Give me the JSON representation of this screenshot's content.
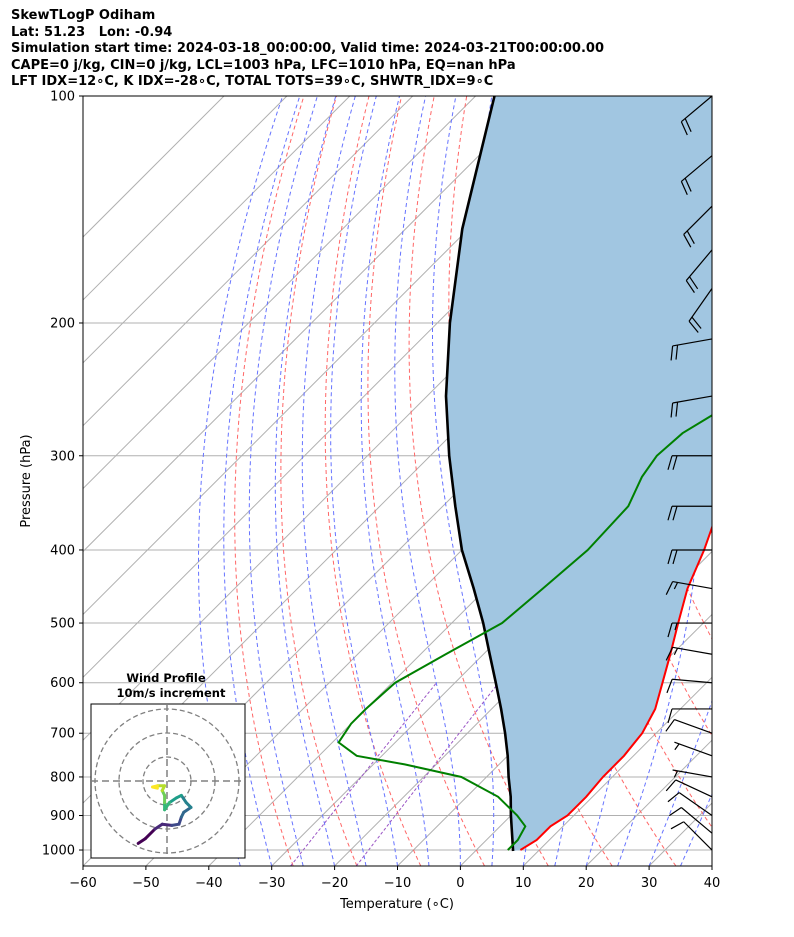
{
  "header": {
    "line1": "SkewTLogP Odiham",
    "line2": "Lat: 51.23   Lon: -0.94",
    "line3": "Simulation start time: 2024-03-18_00:00:00, Valid time: 2024-03-21T00:00:00.00",
    "line4": "CAPE=0 j/kg, CIN=0 j/kg, LCL=1003 hPa, LFC=1010 hPa, EQ=nan hPa",
    "line5": "LFT IDX=12∘C, K IDX=-28∘C, TOTAL TOTS=39∘C, SHWTR_IDX=9∘C"
  },
  "chart_data": {
    "type": "line",
    "subtype": "skew-t log-p",
    "xlabel": "Temperature (∘C)",
    "ylabel": "Pressure (hPa)",
    "xlim": [
      -60,
      40
    ],
    "ylim": [
      1050,
      100
    ],
    "y_scale": "log",
    "x_ticks": [
      "−60",
      "−50",
      "−40",
      "−30",
      "−20",
      "−10",
      "0",
      "10",
      "20",
      "30",
      "40"
    ],
    "y_ticks": [
      "100",
      "200",
      "300",
      "400",
      "500",
      "600",
      "700",
      "800",
      "900",
      "1000"
    ],
    "grid": true,
    "colors": {
      "temperature": "#ff0000",
      "dewpoint": "#008000",
      "parcel": "#000000",
      "shade": "#a1c6e1",
      "dry_adiabats": "#ff6666",
      "moist_adiabats": "#6673ff",
      "mixing_ratio": "#9a55c5"
    },
    "series": [
      {
        "role": "temperature",
        "points": [
          {
            "p": 1000,
            "t": 7
          },
          {
            "p": 970,
            "t": 8
          },
          {
            "p": 930,
            "t": 8
          },
          {
            "p": 900,
            "t": 9
          },
          {
            "p": 850,
            "t": 9
          },
          {
            "p": 800,
            "t": 8.5
          },
          {
            "p": 750,
            "t": 8.5
          },
          {
            "p": 700,
            "t": 7.8
          },
          {
            "p": 650,
            "t": 6
          },
          {
            "p": 600,
            "t": 3
          },
          {
            "p": 550,
            "t": -0.3
          },
          {
            "p": 500,
            "t": -4
          },
          {
            "p": 450,
            "t": -8
          },
          {
            "p": 400,
            "t": -11.5
          },
          {
            "p": 350,
            "t": -16
          },
          {
            "p": 320,
            "t": -19
          },
          {
            "p": 300,
            "t": -21.5
          },
          {
            "p": 280,
            "t": -25
          },
          {
            "p": 250,
            "t": -29
          },
          {
            "p": 230,
            "t": -32
          },
          {
            "p": 210,
            "t": -37
          },
          {
            "p": 200,
            "t": -39
          },
          {
            "p": 180,
            "t": -43.5
          },
          {
            "p": 170,
            "t": -45
          },
          {
            "p": 160,
            "t": -45.5
          },
          {
            "p": 150,
            "t": -47
          },
          {
            "p": 140,
            "t": -49
          },
          {
            "p": 130,
            "t": -51
          },
          {
            "p": 120,
            "t": -53
          },
          {
            "p": 110,
            "t": -54.5
          },
          {
            "p": 100,
            "t": -56
          }
        ]
      },
      {
        "role": "dewpoint",
        "points": [
          {
            "p": 1000,
            "t": 5
          },
          {
            "p": 970,
            "t": 5
          },
          {
            "p": 930,
            "t": 4
          },
          {
            "p": 900,
            "t": 1
          },
          {
            "p": 850,
            "t": -5
          },
          {
            "p": 800,
            "t": -14
          },
          {
            "p": 770,
            "t": -25
          },
          {
            "p": 750,
            "t": -34
          },
          {
            "p": 720,
            "t": -39
          },
          {
            "p": 680,
            "t": -40
          },
          {
            "p": 650,
            "t": -40
          },
          {
            "p": 600,
            "t": -39.5
          },
          {
            "p": 550,
            "t": -36
          },
          {
            "p": 500,
            "t": -32
          },
          {
            "p": 450,
            "t": -31
          },
          {
            "p": 400,
            "t": -30
          },
          {
            "p": 350,
            "t": -30.5
          },
          {
            "p": 320,
            "t": -33
          },
          {
            "p": 300,
            "t": -34
          },
          {
            "p": 280,
            "t": -33.5
          },
          {
            "p": 260,
            "t": -31
          },
          {
            "p": 250,
            "t": -29.5
          },
          {
            "p": 230,
            "t": -33
          },
          {
            "p": 215,
            "t": -39
          },
          {
            "p": 200,
            "t": -42
          },
          {
            "p": 180,
            "t": -42
          },
          {
            "p": 160,
            "t": -41.5
          },
          {
            "p": 140,
            "t": -40.5
          },
          {
            "p": 120,
            "t": -40
          },
          {
            "p": 110,
            "t": -38.5
          },
          {
            "p": 100,
            "t": -38
          }
        ]
      },
      {
        "role": "parcel",
        "points": [
          {
            "p": 1003,
            "t": 6
          },
          {
            "p": 950,
            "t": 3
          },
          {
            "p": 900,
            "t": 0
          },
          {
            "p": 850,
            "t": -3
          },
          {
            "p": 800,
            "t": -6.5
          },
          {
            "p": 750,
            "t": -10
          },
          {
            "p": 700,
            "t": -14
          },
          {
            "p": 650,
            "t": -18.5
          },
          {
            "p": 600,
            "t": -23.5
          },
          {
            "p": 550,
            "t": -29
          },
          {
            "p": 500,
            "t": -35
          },
          {
            "p": 450,
            "t": -42
          },
          {
            "p": 400,
            "t": -50
          },
          {
            "p": 350,
            "t": -58
          },
          {
            "p": 300,
            "t": -67
          },
          {
            "p": 250,
            "t": -77
          },
          {
            "p": 200,
            "t": -88
          },
          {
            "p": 150,
            "t": -101
          },
          {
            "p": 100,
            "t": -117
          }
        ]
      }
    ],
    "wind_barbs": [
      {
        "p": 100,
        "speed_kt": 20,
        "dir_deg": 230
      },
      {
        "p": 120,
        "speed_kt": 20,
        "dir_deg": 230
      },
      {
        "p": 140,
        "speed_kt": 20,
        "dir_deg": 225
      },
      {
        "p": 160,
        "speed_kt": 20,
        "dir_deg": 220
      },
      {
        "p": 180,
        "speed_kt": 20,
        "dir_deg": 215
      },
      {
        "p": 210,
        "speed_kt": 20,
        "dir_deg": 260
      },
      {
        "p": 250,
        "speed_kt": 20,
        "dir_deg": 260
      },
      {
        "p": 300,
        "speed_kt": 20,
        "dir_deg": 270
      },
      {
        "p": 350,
        "speed_kt": 20,
        "dir_deg": 270
      },
      {
        "p": 400,
        "speed_kt": 20,
        "dir_deg": 270
      },
      {
        "p": 450,
        "speed_kt": 15,
        "dir_deg": 280
      },
      {
        "p": 500,
        "speed_kt": 15,
        "dir_deg": 270
      },
      {
        "p": 550,
        "speed_kt": 15,
        "dir_deg": 280
      },
      {
        "p": 600,
        "speed_kt": 10,
        "dir_deg": 275
      },
      {
        "p": 650,
        "speed_kt": 10,
        "dir_deg": 270
      },
      {
        "p": 700,
        "speed_kt": 10,
        "dir_deg": 290
      },
      {
        "p": 750,
        "speed_kt": 5,
        "dir_deg": 290
      },
      {
        "p": 800,
        "speed_kt": 5,
        "dir_deg": 280
      },
      {
        "p": 850,
        "speed_kt": 10,
        "dir_deg": 295
      },
      {
        "p": 900,
        "speed_kt": 10,
        "dir_deg": 305
      },
      {
        "p": 950,
        "speed_kt": 10,
        "dir_deg": 310
      },
      {
        "p": 1000,
        "speed_kt": 10,
        "dir_deg": 315
      }
    ],
    "hodograph": {
      "title": "Wind Profile",
      "subtitle": "10m/s increment",
      "colormap": "viridis",
      "points": [
        {
          "u": -12,
          "v": -26
        },
        {
          "u": -9,
          "v": -24
        },
        {
          "u": -5,
          "v": -20
        },
        {
          "u": -2,
          "v": -18
        },
        {
          "u": 2,
          "v": -18.5
        },
        {
          "u": 5,
          "v": -18
        },
        {
          "u": 6,
          "v": -15
        },
        {
          "u": 7,
          "v": -13
        },
        {
          "u": 10,
          "v": -11
        },
        {
          "u": 8,
          "v": -9
        },
        {
          "u": 6,
          "v": -6
        },
        {
          "u": 4,
          "v": -7
        },
        {
          "u": 1,
          "v": -9
        },
        {
          "u": -1,
          "v": -12
        },
        {
          "u": -1,
          "v": -9
        },
        {
          "u": -1,
          "v": -6
        },
        {
          "u": -2,
          "v": -4
        },
        {
          "u": -1,
          "v": -2
        },
        {
          "u": -4,
          "v": -2
        },
        {
          "u": -6,
          "v": -2.5
        },
        {
          "u": -4,
          "v": -3
        }
      ]
    }
  }
}
